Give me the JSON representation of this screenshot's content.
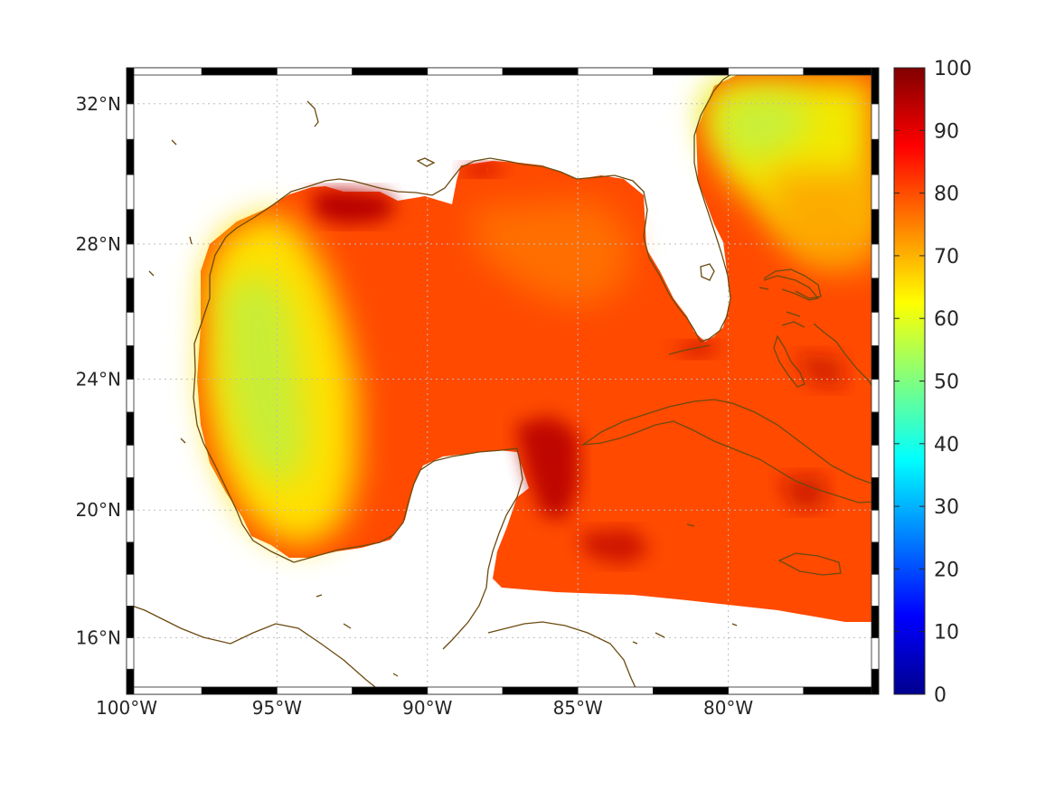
{
  "map": {
    "lon_range": [
      -100,
      -75
    ],
    "lat_range": [
      14.2,
      33
    ],
    "lon_ticks": [
      {
        "value": -100,
        "label": "100°W"
      },
      {
        "value": -95,
        "label": "95°W"
      },
      {
        "value": -90,
        "label": "90°W"
      },
      {
        "value": -85,
        "label": "85°W"
      },
      {
        "value": -80,
        "label": "80°W"
      }
    ],
    "lat_ticks": [
      {
        "value": 16,
        "label": "16°N"
      },
      {
        "value": 20,
        "label": "20°N"
      },
      {
        "value": 24,
        "label": "24°N"
      },
      {
        "value": 28,
        "label": "28°N"
      },
      {
        "value": 32,
        "label": "32°N"
      }
    ],
    "grid": true,
    "colormap": "jet",
    "land_color": "#ffffff",
    "coastline_color": "#6b4a10"
  },
  "colorbar": {
    "range": [
      0,
      100
    ],
    "ticks": [
      {
        "value": 0,
        "label": "0"
      },
      {
        "value": 10,
        "label": "10"
      },
      {
        "value": 20,
        "label": "20"
      },
      {
        "value": 30,
        "label": "30"
      },
      {
        "value": 40,
        "label": "40"
      },
      {
        "value": 50,
        "label": "50"
      },
      {
        "value": 60,
        "label": "60"
      },
      {
        "value": 70,
        "label": "70"
      },
      {
        "value": 80,
        "label": "80"
      },
      {
        "value": 90,
        "label": "90"
      },
      {
        "value": 100,
        "label": "100"
      }
    ]
  }
}
